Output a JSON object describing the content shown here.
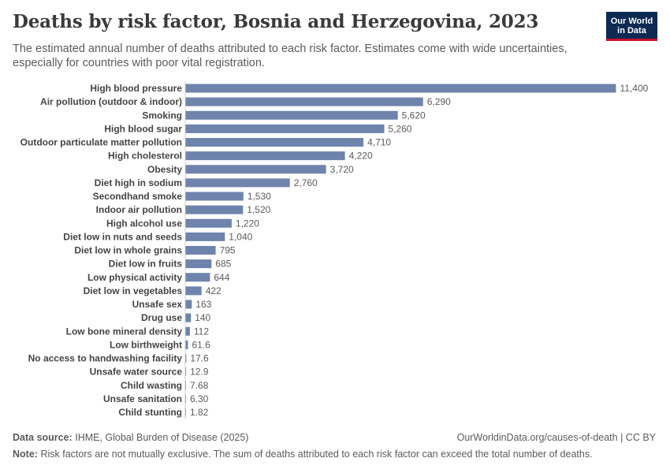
{
  "header": {
    "title": "Deaths by risk factor, Bosnia and Herzegovina, 2023",
    "subtitle": "The estimated annual number of deaths attributed to each risk factor. Estimates come with wide uncertainties, especially for countries with poor vital registration."
  },
  "logo": {
    "line1": "Our World",
    "line2": "in Data"
  },
  "colors": {
    "bar": "#6e84ac",
    "axis": "#d0d0d0",
    "brand": "#0c2a52",
    "brand_accent": "#c8102e"
  },
  "chart_data": {
    "type": "bar",
    "orientation": "horizontal",
    "title": "Deaths by risk factor, Bosnia and Herzegovina, 2023",
    "xlabel": "",
    "ylabel": "",
    "xlim": [
      0,
      11400
    ],
    "categories": [
      "High blood pressure",
      "Air pollution (outdoor & indoor)",
      "Smoking",
      "High blood sugar",
      "Outdoor particulate matter pollution",
      "High cholesterol",
      "Obesity",
      "Diet high in sodium",
      "Secondhand smoke",
      "Indoor air pollution",
      "High alcohol use",
      "Diet low in nuts and seeds",
      "Diet low in whole grains",
      "Diet low in fruits",
      "Low physical activity",
      "Diet low in vegetables",
      "Unsafe sex",
      "Drug use",
      "Low bone mineral density",
      "Low birthweight",
      "No access to handwashing facility",
      "Unsafe water source",
      "Child wasting",
      "Unsafe sanitation",
      "Child stunting"
    ],
    "values": [
      11400,
      6290,
      5620,
      5260,
      4710,
      4220,
      3720,
      2760,
      1530,
      1520,
      1220,
      1040,
      795,
      685,
      644,
      422,
      163,
      140,
      112,
      61.6,
      17.6,
      12.9,
      7.68,
      6.3,
      1.82
    ],
    "value_labels": [
      "11,400",
      "6,290",
      "5,620",
      "5,260",
      "4,710",
      "4,220",
      "3,720",
      "2,760",
      "1,530",
      "1,520",
      "1,220",
      "1,040",
      "795",
      "685",
      "644",
      "422",
      "163",
      "140",
      "112",
      "61.6",
      "17.6",
      "12.9",
      "7.68",
      "6.30",
      "1.82"
    ]
  },
  "footer": {
    "source_label": "Data source:",
    "source_text": "IHME, Global Burden of Disease (2025)",
    "url": "OurWorldinData.org/causes-of-death | CC BY",
    "note_label": "Note:",
    "note_text": "Risk factors are not mutually exclusive. The sum of deaths attributed to each risk factor can exceed the total number of deaths."
  }
}
